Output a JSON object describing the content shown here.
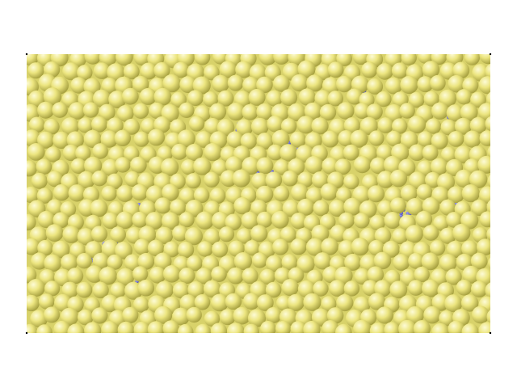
{
  "scene": {
    "description_kind": "granular-packing-render",
    "background_color": "#ffffff",
    "large_particle_color": "#e6e07a",
    "large_particle_highlight": "#fbf8c8",
    "large_particle_shadow": "#a39d3a",
    "small_particle_color": "#6a6ae0",
    "corner_marker_color": "#000000"
  }
}
